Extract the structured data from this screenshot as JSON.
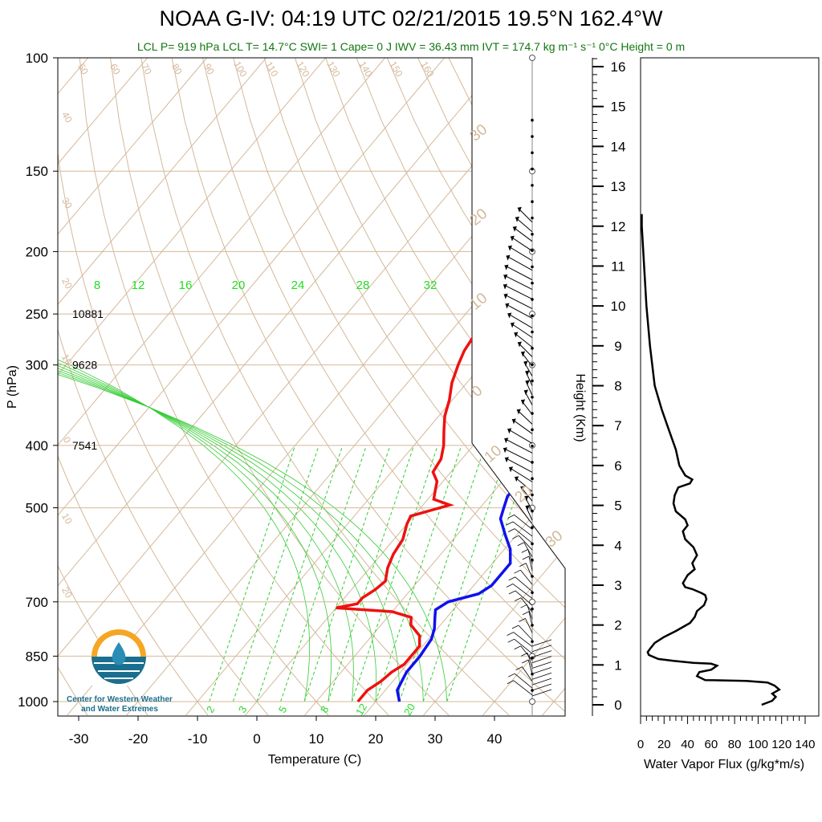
{
  "title_text": "NOAA G-IV: 04:19 UTC 02/21/2015  19.5°N 162.4°W",
  "subtitle_text": "LCL P= 919 hPa  LCL T= 14.7°C  SWI= 1  Cape= 0 J  IWV = 36.43 mm  IVT = 174.7 kg m⁻¹ s⁻¹  0°C Height = 0 m",
  "logo": {
    "line1": "Center for Western Weather",
    "line2": "and Water Extremes"
  },
  "colors": {
    "temperature": "#ee1111",
    "dewpoint": "#1111ee",
    "isotherm": "#d4b89a",
    "mixing_ratio": "#33cc33",
    "background": "#ffffff"
  },
  "chart_data": [
    {
      "type": "skew-t",
      "ylabel": "P (hPa)",
      "xlabel": "Temperature (C)",
      "y_scale": "log",
      "ylim": [
        1000,
        100
      ],
      "xlim": [
        -35,
        52
      ],
      "pressure_ticks": [
        "100",
        "150",
        "200",
        "250",
        "300",
        "400",
        "500",
        "700",
        "850",
        "1000"
      ],
      "temperature_ticks": [
        "-30",
        "-20",
        "-10",
        "0",
        "10",
        "20",
        "30",
        "40"
      ],
      "height_labels": [
        {
          "p": 250,
          "text": "10881"
        },
        {
          "p": 300,
          "text": "9628"
        },
        {
          "p": 400,
          "text": "7541"
        }
      ],
      "mixing_ratio_top_labels": [
        "8",
        "12",
        "16",
        "20",
        "24",
        "28",
        "32"
      ],
      "mixing_ratio_bottom_labels": [
        "2",
        "3",
        "5",
        "8",
        "12",
        "20"
      ],
      "isotherm_labels": [
        "50",
        "60",
        "70",
        "80",
        "90",
        "100",
        "110",
        "120",
        "130",
        "140",
        "150",
        "160",
        "40",
        "30",
        "20",
        "10",
        "0",
        "10",
        "20"
      ],
      "axis_right_labels": [
        "30",
        "20",
        "10",
        "0",
        "10",
        "20",
        "30"
      ],
      "series": [
        {
          "name": "temperature",
          "points": [
            [
              1000,
              17
            ],
            [
              960,
              17
            ],
            [
              930,
              18
            ],
            [
              900,
              18.5
            ],
            [
              875,
              19.5
            ],
            [
              850,
              19.5
            ],
            [
              820,
              19.5
            ],
            [
              790,
              18
            ],
            [
              760,
              15
            ],
            [
              740,
              14
            ],
            [
              725,
              10
            ],
            [
              715,
              0
            ],
            [
              705,
              3
            ],
            [
              690,
              3
            ],
            [
              670,
              4
            ],
            [
              650,
              4.5
            ],
            [
              620,
              3
            ],
            [
              590,
              2
            ],
            [
              560,
              1.5
            ],
            [
              530,
              0
            ],
            [
              515,
              -0.5
            ],
            [
              505,
              2
            ],
            [
              495,
              4.5
            ],
            [
              485,
              1
            ],
            [
              470,
              0
            ],
            [
              455,
              -1
            ],
            [
              440,
              -3
            ],
            [
              420,
              -3.5
            ],
            [
              400,
              -5
            ],
            [
              380,
              -7
            ],
            [
              360,
              -9
            ],
            [
              340,
              -10.5
            ],
            [
              320,
              -12.5
            ],
            [
              300,
              -14
            ],
            [
              285,
              -15
            ],
            [
              270,
              -15.5
            ],
            [
              260,
              -14
            ],
            [
              250,
              -12
            ],
            [
              235,
              -12
            ],
            [
              220,
              -13
            ],
            [
              205,
              -14
            ],
            [
              195,
              -14
            ],
            [
              185,
              -15
            ]
          ]
        },
        {
          "name": "dewpoint",
          "points": [
            [
              1000,
              24
            ],
            [
              960,
              22
            ],
            [
              930,
              21.5
            ],
            [
              900,
              21
            ],
            [
              875,
              21
            ],
            [
              850,
              21
            ],
            [
              800,
              20.5
            ],
            [
              770,
              19.5
            ],
            [
              740,
              18
            ],
            [
              720,
              17
            ],
            [
              700,
              18
            ],
            [
              680,
              22
            ],
            [
              660,
              23
            ],
            [
              640,
              23
            ],
            [
              610,
              23
            ],
            [
              580,
              21
            ],
            [
              550,
              18
            ],
            [
              520,
              15
            ],
            [
              500,
              14
            ],
            [
              480,
              13
            ],
            [
              460,
              13
            ],
            [
              440,
              13
            ],
            [
              420,
              12.5
            ],
            [
              400,
              11.5
            ],
            [
              385,
              11
            ],
            [
              360,
              8
            ],
            [
              340,
              6.5
            ],
            [
              320,
              5
            ],
            [
              300,
              4
            ],
            [
              280,
              3
            ],
            [
              262,
              2
            ],
            [
              250,
              1.5
            ],
            [
              235,
              1.5
            ],
            [
              220,
              1
            ],
            [
              210,
              0.5
            ],
            [
              195,
              0.5
            ],
            [
              185,
              0
            ]
          ]
        }
      ]
    },
    {
      "type": "line",
      "title": "",
      "xlabel": "Water Vapor Flux (g/kg*m/s)",
      "ylabel": "Height (Km)",
      "xlim": [
        0,
        140
      ],
      "ylim": [
        0,
        16.4
      ],
      "x_ticks": [
        "0",
        "20",
        "40",
        "60",
        "80",
        "100",
        "120",
        "140"
      ],
      "y_ticks": [
        "0",
        "1",
        "2",
        "3",
        "4",
        "5",
        "6",
        "7",
        "8",
        "9",
        "10",
        "11",
        "12",
        "13",
        "14",
        "15",
        "16"
      ],
      "series": [
        {
          "name": "",
          "points": [
            [
              103,
              0
            ],
            [
              112,
              0.1
            ],
            [
              115,
              0.2
            ],
            [
              112,
              0.28
            ],
            [
              118,
              0.38
            ],
            [
              114,
              0.48
            ],
            [
              108,
              0.56
            ],
            [
              90,
              0.6
            ],
            [
              55,
              0.62
            ],
            [
              48,
              0.72
            ],
            [
              50,
              0.82
            ],
            [
              60,
              0.88
            ],
            [
              65,
              0.98
            ],
            [
              60,
              1.03
            ],
            [
              45,
              1.05
            ],
            [
              28,
              1.1
            ],
            [
              15,
              1.15
            ],
            [
              7,
              1.25
            ],
            [
              6,
              1.32
            ],
            [
              8,
              1.4
            ],
            [
              12,
              1.55
            ],
            [
              20,
              1.7
            ],
            [
              30,
              1.85
            ],
            [
              42,
              2.05
            ],
            [
              46,
              2.2
            ],
            [
              48,
              2.35
            ],
            [
              54,
              2.5
            ],
            [
              56,
              2.65
            ],
            [
              55,
              2.75
            ],
            [
              52,
              2.8
            ],
            [
              44,
              2.9
            ],
            [
              38,
              2.95
            ],
            [
              36,
              3.05
            ],
            [
              40,
              3.25
            ],
            [
              46,
              3.4
            ],
            [
              44,
              3.55
            ],
            [
              48,
              3.75
            ],
            [
              45,
              3.95
            ],
            [
              38,
              4.15
            ],
            [
              36,
              4.35
            ],
            [
              40,
              4.5
            ],
            [
              38,
              4.65
            ],
            [
              30,
              4.85
            ],
            [
              28,
              5.05
            ],
            [
              29,
              5.25
            ],
            [
              32,
              5.45
            ],
            [
              42,
              5.55
            ],
            [
              44,
              5.65
            ],
            [
              38,
              5.75
            ],
            [
              33,
              6.0
            ],
            [
              30,
              6.4
            ],
            [
              24,
              6.9
            ],
            [
              18,
              7.4
            ],
            [
              12,
              8.0
            ],
            [
              8,
              9.0
            ],
            [
              5,
              10.0
            ],
            [
              3,
              11.0
            ],
            [
              1,
              12.0
            ],
            [
              1,
              12.3
            ]
          ]
        }
      ]
    }
  ]
}
